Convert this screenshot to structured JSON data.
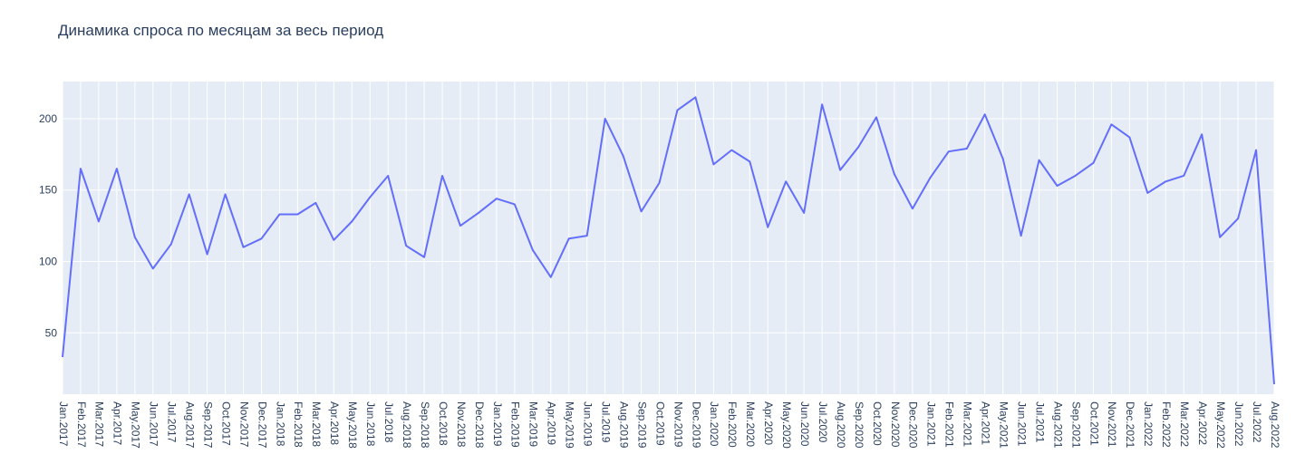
{
  "chart_data": {
    "type": "line",
    "title": "Динамика спроса по месяцам за весь период",
    "xlabel": "",
    "ylabel": "",
    "categories": [
      "Jan.2017",
      "Feb.2017",
      "Mar.2017",
      "Apr.2017",
      "May.2017",
      "Jun.2017",
      "Jul.2017",
      "Aug.2017",
      "Sep.2017",
      "Oct.2017",
      "Nov.2017",
      "Dec.2017",
      "Jan.2018",
      "Feb.2018",
      "Mar.2018",
      "Apr.2018",
      "May.2018",
      "Jun.2018",
      "Jul.2018",
      "Aug.2018",
      "Sep.2018",
      "Oct.2018",
      "Nov.2018",
      "Dec.2018",
      "Jan.2019",
      "Feb.2019",
      "Mar.2019",
      "Apr.2019",
      "May.2019",
      "Jun.2019",
      "Jul.2019",
      "Aug.2019",
      "Sep.2019",
      "Oct.2019",
      "Nov.2019",
      "Dec.2019",
      "Jan.2020",
      "Feb.2020",
      "Mar.2020",
      "Apr.2020",
      "May.2020",
      "Jun.2020",
      "Jul.2020",
      "Aug.2020",
      "Sep.2020",
      "Oct.2020",
      "Nov.2020",
      "Dec.2020",
      "Jan.2021",
      "Feb.2021",
      "Mar.2021",
      "Apr.2021",
      "May.2021",
      "Jun.2021",
      "Jul.2021",
      "Aug.2021",
      "Sep.2021",
      "Oct.2021",
      "Nov.2021",
      "Dec.2021",
      "Jan.2022",
      "Feb.2022",
      "Mar.2022",
      "Apr.2022",
      "May.2022",
      "Jun.2022",
      "Jul.2022",
      "Aug.2022"
    ],
    "series": [
      {
        "name": "",
        "color": "#636efa",
        "values": [
          33,
          165,
          128,
          165,
          117,
          95,
          112,
          147,
          105,
          147,
          110,
          116,
          133,
          133,
          141,
          115,
          128,
          145,
          160,
          111,
          103,
          160,
          125,
          134,
          144,
          140,
          108,
          89,
          116,
          118,
          200,
          174,
          135,
          155,
          206,
          215,
          168,
          178,
          170,
          124,
          156,
          134,
          210,
          164,
          180,
          201,
          161,
          137,
          159,
          177,
          179,
          203,
          172,
          118,
          171,
          153,
          160,
          169,
          196,
          187,
          148,
          156,
          160,
          189,
          117,
          130,
          178,
          14
        ]
      }
    ],
    "yticks": [
      50,
      100,
      150,
      200
    ],
    "ylim": [
      7,
      226
    ],
    "grid": true,
    "legend": "none",
    "background_color": "#e5ecf6",
    "gridline_color": "#ffffff",
    "text_color": "#2a3f5f"
  }
}
